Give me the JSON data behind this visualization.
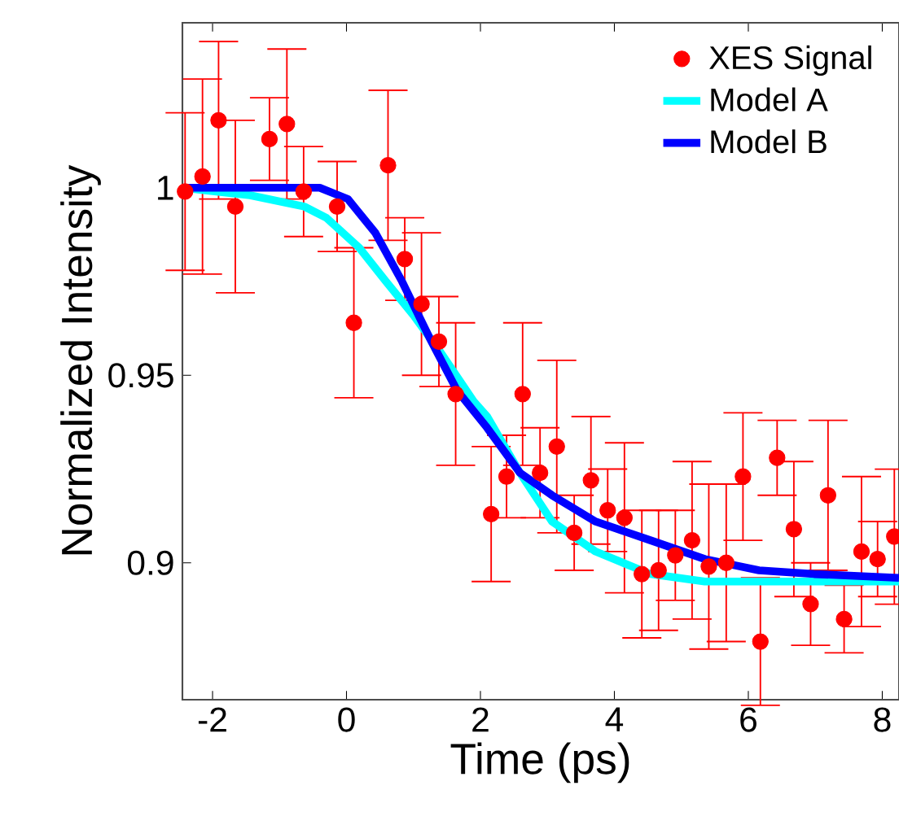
{
  "chart_data": {
    "type": "line",
    "xlabel": "Time (ps)",
    "ylabel": "Normalized Intensity",
    "xlim": [
      -2.45,
      8.25
    ],
    "ylim": [
      0.8635,
      1.044
    ],
    "xticks": [
      -2,
      0,
      2,
      4,
      6,
      8
    ],
    "yticks": [
      0.9,
      0.95,
      1
    ],
    "legend": "top right",
    "grid": false,
    "series": [
      {
        "name": "XES Signal",
        "type": "scatter",
        "marker": "circle",
        "color": "#ff0000",
        "x": [
          -2.41,
          -2.15,
          -1.91,
          -1.66,
          -1.15,
          -0.89,
          -0.64,
          -0.14,
          0.11,
          0.62,
          0.87,
          1.12,
          1.38,
          1.63,
          2.16,
          2.39,
          2.63,
          2.89,
          3.14,
          3.4,
          3.65,
          3.9,
          4.15,
          4.41,
          4.66,
          4.91,
          5.16,
          5.41,
          5.67,
          5.92,
          6.18,
          6.43,
          6.68,
          6.93,
          7.19,
          7.43,
          7.69,
          7.93,
          8.18
        ],
        "values": [
          0.999,
          1.003,
          1.018,
          0.995,
          1.013,
          1.017,
          0.999,
          0.995,
          0.964,
          1.006,
          0.981,
          0.969,
          0.959,
          0.945,
          0.913,
          0.923,
          0.945,
          0.924,
          0.931,
          0.908,
          0.922,
          0.914,
          0.912,
          0.897,
          0.898,
          0.902,
          0.906,
          0.899,
          0.9,
          0.923,
          0.879,
          0.928,
          0.909,
          0.889,
          0.918,
          0.885,
          0.903,
          0.901,
          0.907
        ],
        "errors": [
          0.021,
          0.026,
          0.021,
          0.023,
          0.011,
          0.02,
          0.012,
          0.012,
          0.02,
          0.02,
          0.011,
          0.019,
          0.012,
          0.019,
          0.018,
          0.011,
          0.019,
          0.012,
          0.023,
          0.01,
          0.017,
          0.011,
          0.02,
          0.017,
          0.016,
          0.012,
          0.021,
          0.022,
          0.021,
          0.017,
          0.017,
          0.01,
          0.018,
          0.011,
          0.02,
          0.009,
          0.02,
          0.01,
          0.018
        ]
      },
      {
        "name": "Model A",
        "color": "#00ffff",
        "x": [
          -2.45,
          -1.44,
          -0.63,
          -0.3,
          0.19,
          0.59,
          1.0,
          1.41,
          1.9,
          2.1,
          2.59,
          3.07,
          3.72,
          4.54,
          5.35,
          6.5,
          8.25
        ],
        "values": [
          1.0,
          0.998,
          0.995,
          0.992,
          0.984,
          0.975,
          0.966,
          0.956,
          0.943,
          0.939,
          0.924,
          0.911,
          0.903,
          0.897,
          0.895,
          0.895,
          0.895
        ]
      },
      {
        "name": "Model B",
        "color": "#0000ff",
        "x": [
          -2.45,
          -1.0,
          -0.4,
          0.02,
          0.43,
          0.83,
          1.24,
          1.65,
          2.1,
          2.59,
          3.07,
          3.72,
          4.54,
          5.35,
          6.16,
          6.98,
          8.25
        ],
        "values": [
          1.0,
          1.0,
          1.0,
          0.997,
          0.988,
          0.975,
          0.96,
          0.946,
          0.936,
          0.924,
          0.918,
          0.911,
          0.906,
          0.901,
          0.898,
          0.897,
          0.896
        ]
      }
    ]
  }
}
